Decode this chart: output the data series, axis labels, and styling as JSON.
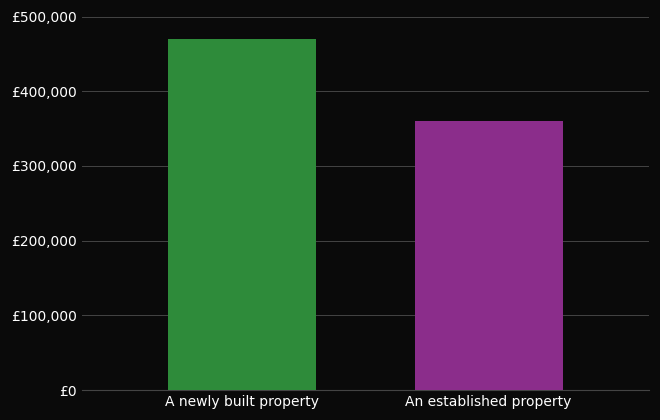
{
  "categories": [
    "A newly built property",
    "An established property"
  ],
  "values": [
    470000,
    360000
  ],
  "bar_colors": [
    "#2e8b3a",
    "#8b2d8b"
  ],
  "background_color": "#0a0a0a",
  "text_color": "#ffffff",
  "grid_color": "#444444",
  "ylim": [
    0,
    500000
  ],
  "ytick_step": 100000,
  "bar_width": 0.6,
  "xlabel": "",
  "ylabel": "",
  "tick_fontsize": 10,
  "xtick_fontsize": 10
}
